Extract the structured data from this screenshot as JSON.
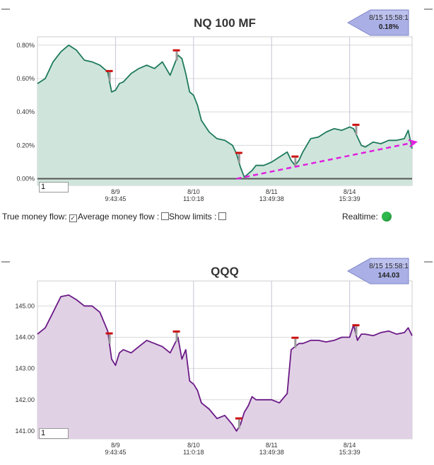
{
  "controls": {
    "true_money_flow_label": "True money flow:",
    "true_money_flow_checked": "✓",
    "average_money_flow_label": "Average money flow :",
    "show_limits_label": "Show limits :",
    "realtime_label": "Realtime:"
  },
  "charts": [
    {
      "title": "NQ 100 MF",
      "badge_date": "8/15 15:58:1",
      "badge_value": "0.18%",
      "input_value": "1"
    },
    {
      "title": "QQQ",
      "badge_date": "8/15 15:58:1",
      "badge_value": "144.03",
      "input_value": "1"
    }
  ],
  "chart_data": [
    {
      "type": "area",
      "title": "NQ 100 MF",
      "ylim": [
        -0.04,
        0.85
      ],
      "yticks": [
        0.0,
        0.2,
        0.4,
        0.6,
        0.8
      ],
      "ytick_labels": [
        "0.00%",
        "0.20%",
        "0.40%",
        "0.60%",
        "0.80%"
      ],
      "x_tick_positions": [
        10,
        20,
        30,
        40
      ],
      "x_tick_labels": [
        [
          "8/9",
          "9:43:45"
        ],
        [
          "8/10",
          "11:0:18"
        ],
        [
          "8/11",
          "13:49:38"
        ],
        [
          "8/14",
          "15:3:39"
        ]
      ],
      "xlim": [
        0,
        48
      ],
      "color": "#1e7a5c",
      "fill": "#cfe5dc",
      "series": [
        {
          "x": [
            0,
            1,
            2,
            3,
            4,
            5,
            6,
            7,
            8,
            9,
            9.5,
            10,
            10.5,
            11,
            12,
            13,
            14,
            15,
            16,
            17,
            18,
            18.5,
            19,
            19.5,
            20,
            20.5,
            21,
            22,
            23,
            24,
            25,
            25.5,
            26,
            26.5,
            27,
            27.5,
            28,
            29,
            30,
            31,
            32,
            32.5,
            33,
            33.5,
            34,
            35,
            36,
            37,
            38,
            39,
            40,
            40.5,
            41,
            41.5,
            42,
            43,
            44,
            45,
            46,
            47,
            47.5,
            48
          ],
          "y": [
            0.57,
            0.6,
            0.7,
            0.76,
            0.8,
            0.77,
            0.71,
            0.7,
            0.68,
            0.64,
            0.52,
            0.53,
            0.57,
            0.58,
            0.63,
            0.66,
            0.68,
            0.66,
            0.7,
            0.62,
            0.74,
            0.72,
            0.63,
            0.52,
            0.5,
            0.44,
            0.35,
            0.28,
            0.24,
            0.23,
            0.2,
            0.15,
            0.07,
            0.01,
            0.03,
            0.05,
            0.08,
            0.08,
            0.1,
            0.13,
            0.16,
            0.11,
            0.08,
            0.11,
            0.16,
            0.24,
            0.25,
            0.28,
            0.3,
            0.29,
            0.31,
            0.3,
            0.25,
            0.2,
            0.19,
            0.22,
            0.21,
            0.23,
            0.23,
            0.24,
            0.29,
            0.18
          ]
        }
      ],
      "markers_x": [
        9.2,
        17.8,
        25.8,
        33,
        40.8
      ],
      "trend": {
        "x": [
          25.5,
          48.5
        ],
        "y": [
          0.0,
          0.22
        ],
        "color": "#e020e0"
      }
    },
    {
      "type": "area",
      "title": "QQQ",
      "ylim": [
        140.75,
        145.8
      ],
      "yticks": [
        141.0,
        142.0,
        143.0,
        144.0,
        145.0
      ],
      "ytick_labels": [
        "141.00",
        "142.00",
        "143.00",
        "144.00",
        "145.00"
      ],
      "x_tick_positions": [
        10,
        20,
        30,
        40
      ],
      "x_tick_labels": [
        [
          "8/9",
          "9:43:45"
        ],
        [
          "8/10",
          "11:0:18"
        ],
        [
          "8/11",
          "13:49:38"
        ],
        [
          "8/14",
          "15:3:39"
        ]
      ],
      "xlim": [
        0,
        48
      ],
      "color": "#6a1a86",
      "fill": "#e1d1e5",
      "series": [
        {
          "x": [
            0,
            1,
            2,
            3,
            4,
            5,
            6,
            7,
            8,
            9,
            9.5,
            10,
            10.5,
            11,
            12,
            13,
            14,
            15,
            16,
            17,
            18,
            18.5,
            19,
            19.5,
            20,
            20.5,
            21,
            22,
            23,
            24,
            25,
            25.5,
            26,
            26.5,
            27,
            27.5,
            28,
            29,
            30,
            31,
            32,
            32.5,
            33,
            33.5,
            34,
            35,
            36,
            37,
            38,
            39,
            40,
            40.5,
            41,
            41.5,
            42,
            43,
            44,
            45,
            46,
            47,
            47.5,
            48
          ],
          "y": [
            144.1,
            144.3,
            144.8,
            145.3,
            145.35,
            145.2,
            145.0,
            145.0,
            144.8,
            144.2,
            143.3,
            143.1,
            143.5,
            143.6,
            143.5,
            143.7,
            143.9,
            143.8,
            143.7,
            143.5,
            144.0,
            143.3,
            143.6,
            142.6,
            142.5,
            142.3,
            141.9,
            141.7,
            141.4,
            141.5,
            141.2,
            141.0,
            141.2,
            141.6,
            141.8,
            142.1,
            142.0,
            142.0,
            142.0,
            141.9,
            142.2,
            143.6,
            143.7,
            143.8,
            143.8,
            143.9,
            143.9,
            143.85,
            143.9,
            144.0,
            144.0,
            144.4,
            143.9,
            144.1,
            144.1,
            144.05,
            144.15,
            144.2,
            144.1,
            144.15,
            144.3,
            144.05
          ]
        }
      ],
      "markers_x": [
        9.2,
        17.8,
        25.8,
        33,
        40.8
      ]
    }
  ]
}
